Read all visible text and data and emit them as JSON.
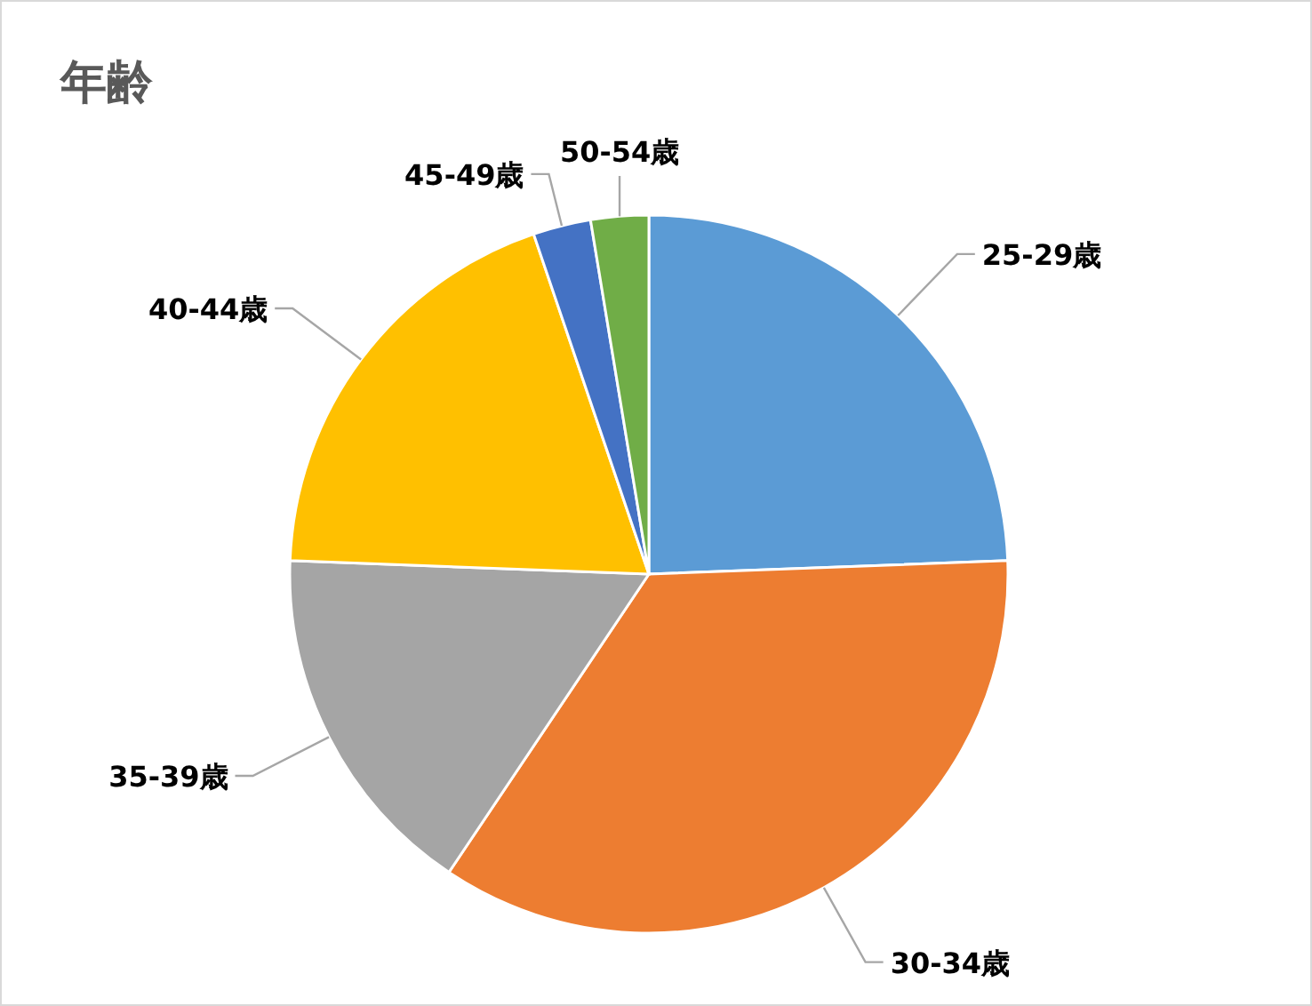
{
  "chart_data": {
    "type": "pie",
    "title": "年齢",
    "categories": [
      "25-29歳",
      "30-34歳",
      "35-39歳",
      "40-44歳",
      "45-49歳",
      "50-54歳"
    ],
    "values": [
      24.4,
      35.0,
      16.2,
      19.2,
      2.6,
      2.6
    ],
    "colors": [
      "#5b9bd5",
      "#ed7d31",
      "#a5a5a5",
      "#ffc000",
      "#4472c4",
      "#70ad47"
    ]
  }
}
